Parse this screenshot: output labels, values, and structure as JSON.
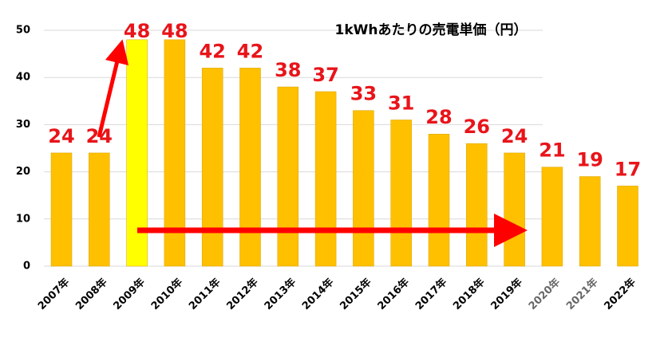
{
  "chart_data": {
    "type": "bar",
    "title": "1kWhあたりの売電単価（円）",
    "categories": [
      "2007年",
      "2008年",
      "2009年",
      "2010年",
      "2011年",
      "2012年",
      "2013年",
      "2014年",
      "2015年",
      "2016年",
      "2017年",
      "2018年",
      "2019年",
      "2020年",
      "2021年",
      "2022年"
    ],
    "values": [
      24,
      24,
      48,
      48,
      42,
      42,
      38,
      37,
      33,
      31,
      28,
      26,
      24,
      21,
      19,
      17
    ],
    "colors": [
      "#ffc000",
      "#ffc000",
      "#ffff00",
      "#ffc000",
      "#ffc000",
      "#ffc000",
      "#ffc000",
      "#ffc000",
      "#ffc000",
      "#ffc000",
      "#ffc000",
      "#ffc000",
      "#ffc000",
      "#ffc000",
      "#ffc000",
      "#ffc000"
    ],
    "category_label_colors": [
      "#000000",
      "#000000",
      "#000000",
      "#000000",
      "#000000",
      "#000000",
      "#000000",
      "#000000",
      "#000000",
      "#000000",
      "#000000",
      "#000000",
      "#000000",
      "#666666",
      "#666666",
      "#000000"
    ],
    "ylim": [
      0,
      50
    ],
    "yticks": [
      0,
      10,
      20,
      30,
      40,
      50
    ],
    "grid": true
  }
}
